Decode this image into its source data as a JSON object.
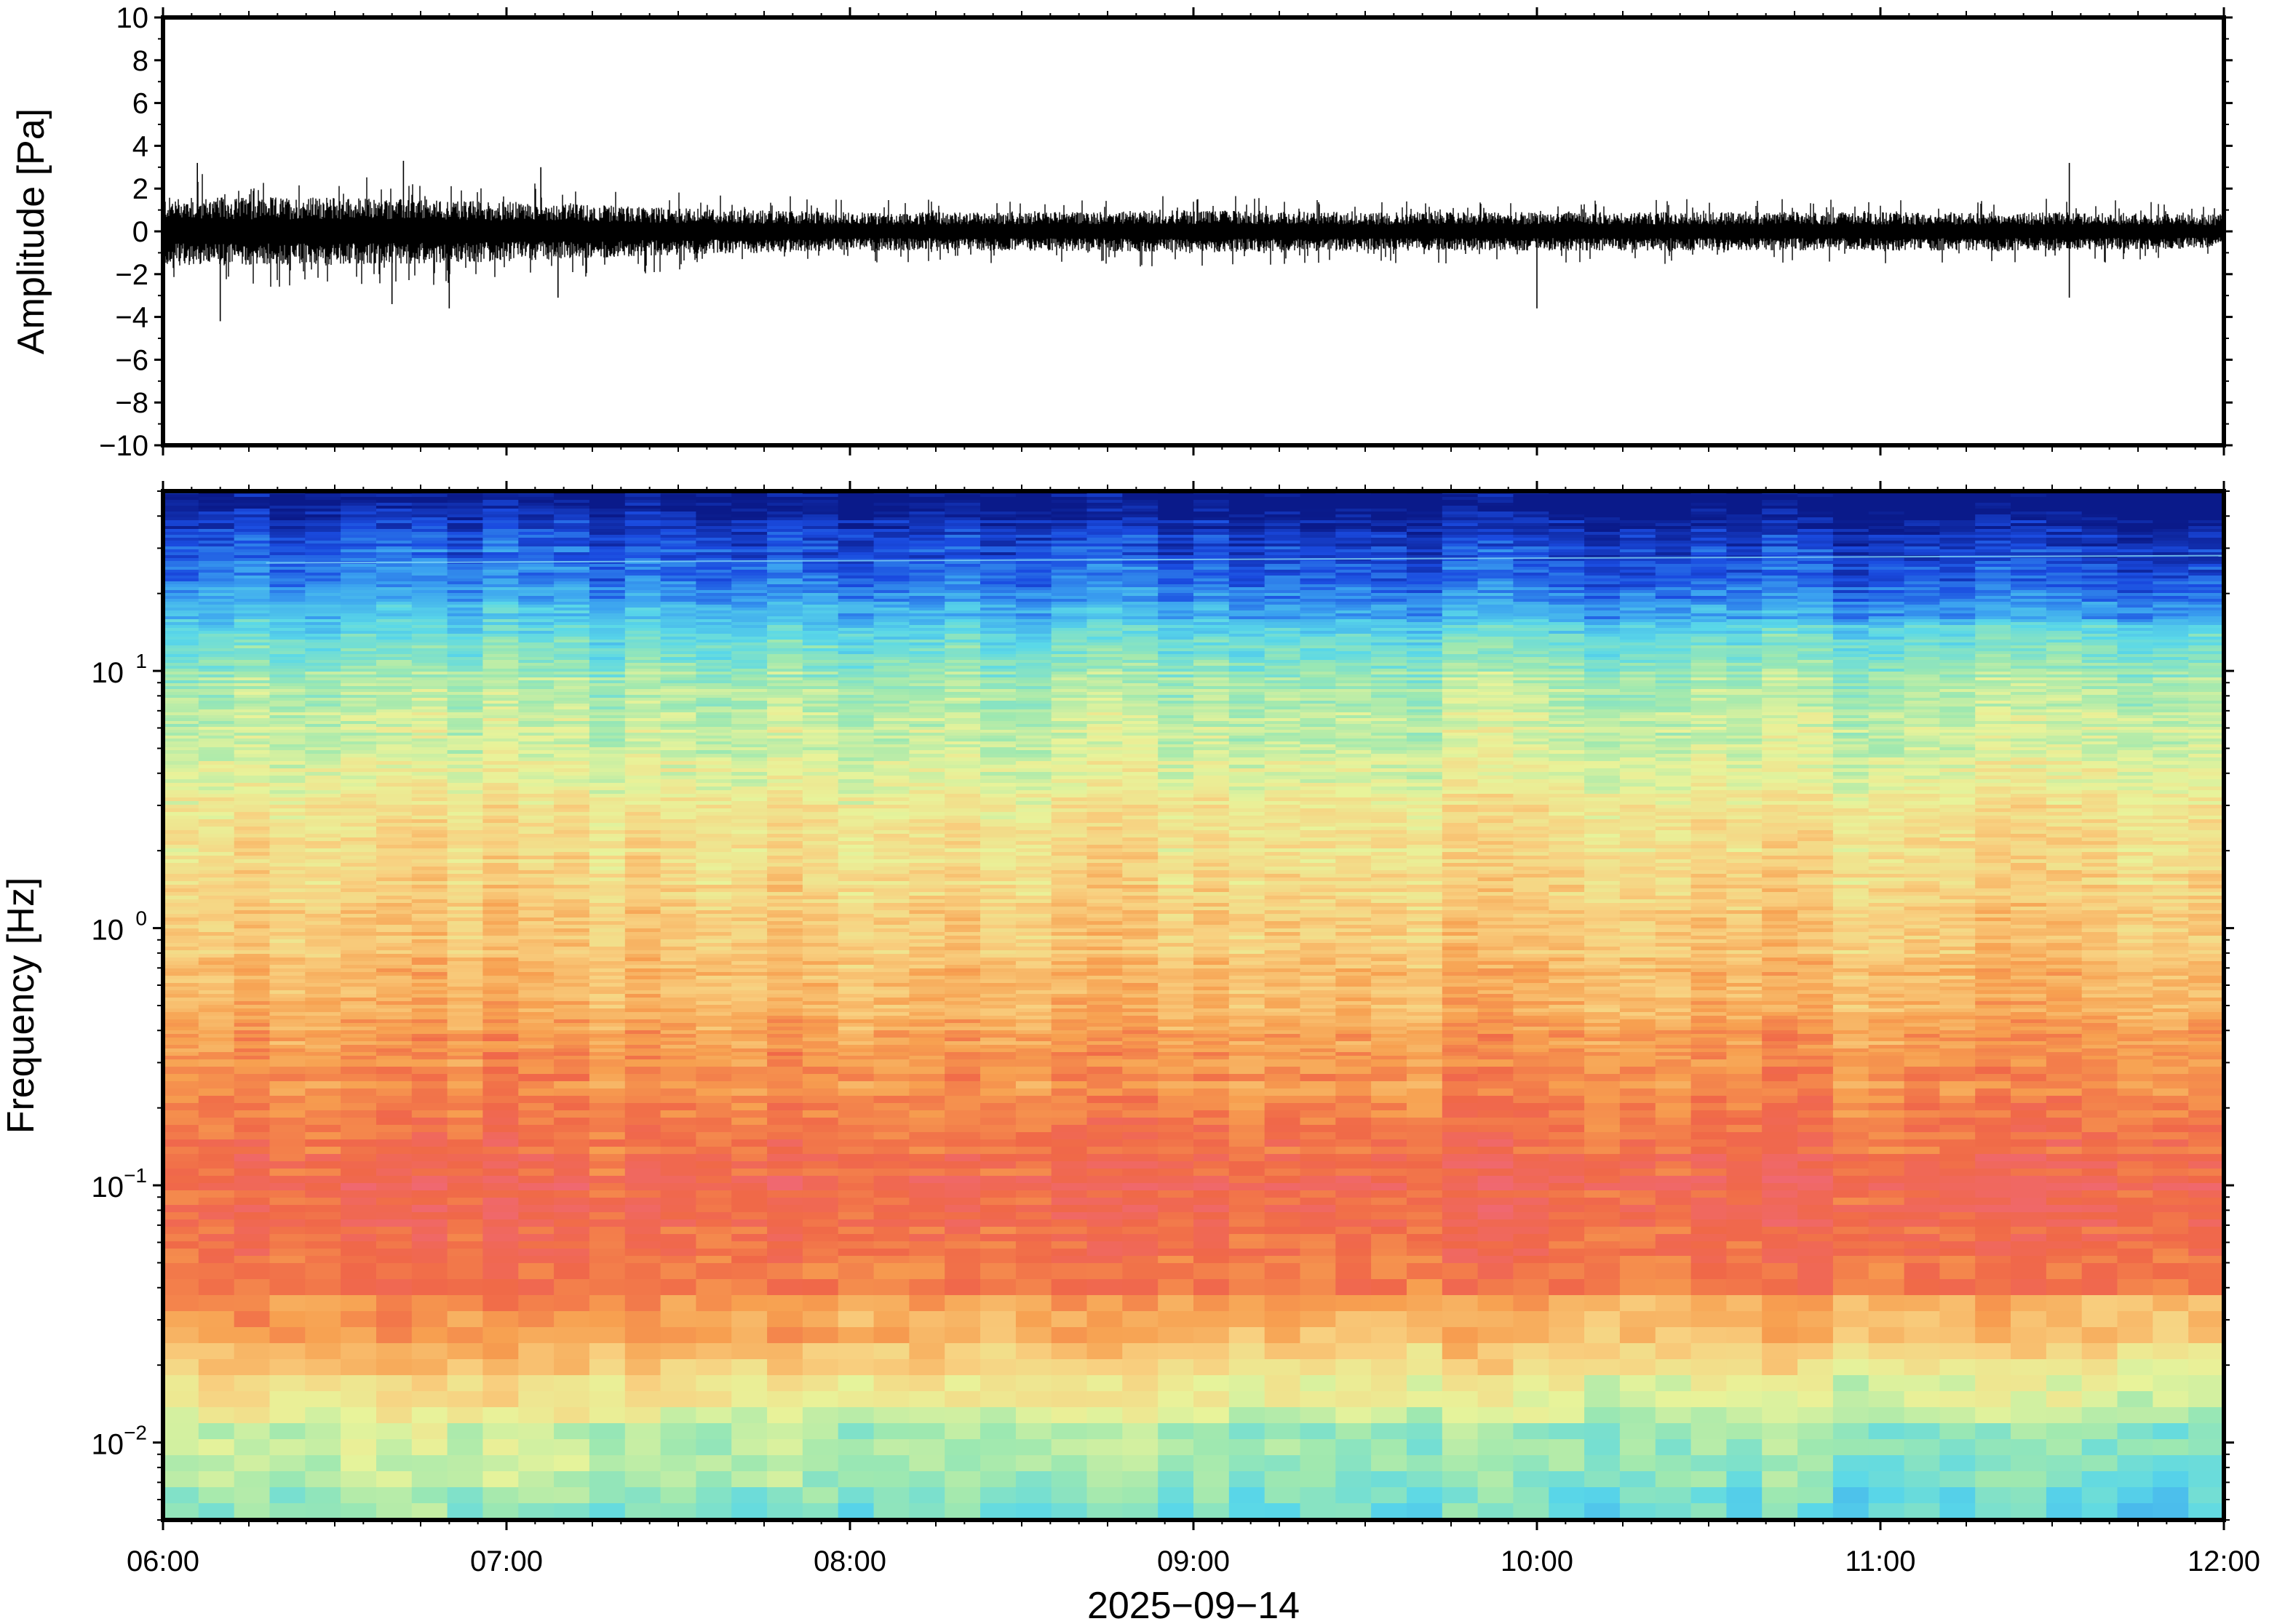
{
  "chart_data": [
    {
      "type": "line",
      "panel": "waveform",
      "ylabel": "Amplitude [Pa]",
      "xlabel": "",
      "ylim": [
        -10,
        10
      ],
      "y_ticks": [
        10,
        8,
        6,
        4,
        2,
        0,
        -2,
        -4,
        -6,
        -8,
        -10
      ],
      "y_tick_labels": [
        "10",
        "8",
        "6",
        "4",
        "2",
        "0",
        "−2",
        "−4",
        "−6",
        "−8",
        "−10"
      ],
      "x_range": [
        "06:00",
        "12:00"
      ],
      "color": "#000000",
      "series": [
        {
          "time_hours": [
            6.0,
            6.5,
            7.0,
            7.5,
            8.0,
            8.5,
            9.0,
            9.5,
            10.0,
            10.5,
            11.0,
            11.5,
            12.0
          ],
          "envelope_pa": [
            1.6,
            1.6,
            1.4,
            1.1,
            0.9,
            0.9,
            1.0,
            0.9,
            0.9,
            0.9,
            0.9,
            0.9,
            0.8
          ],
          "peaks": [
            {
              "time": "06:10",
              "value": -4.2
            },
            {
              "time": "06:06",
              "value": 3.2
            },
            {
              "time": "06:42",
              "value": 3.3
            },
            {
              "time": "06:40",
              "value": -3.4
            },
            {
              "time": "06:50",
              "value": -3.6
            },
            {
              "time": "07:06",
              "value": 3.0
            },
            {
              "time": "07:09",
              "value": -3.1
            },
            {
              "time": "10:00",
              "value": -3.6
            },
            {
              "time": "11:33",
              "value": 3.2
            },
            {
              "time": "11:33",
              "value": -3.1
            }
          ]
        }
      ]
    },
    {
      "type": "heatmap",
      "panel": "spectrogram",
      "ylabel": "Frequency [Hz]",
      "xlabel": "2025−09−14",
      "y_scale": "log",
      "ylim": [
        0.005,
        50
      ],
      "y_ticks": [
        0.01,
        0.1,
        1,
        10
      ],
      "y_tick_labels": [
        {
          "base": "10",
          "exp": "−2"
        },
        {
          "base": "10",
          "exp": "−1"
        },
        {
          "base": "10",
          "exp": "0"
        },
        {
          "base": "10",
          "exp": "1"
        }
      ],
      "x_ticks": [
        "06:00",
        "07:00",
        "08:00",
        "09:00",
        "10:00",
        "11:00",
        "12:00"
      ],
      "colormap": "rainbow (blue = low power, red = high power)",
      "colormap_stops": [
        "#0a1a8a",
        "#1a4be0",
        "#3aa0f0",
        "#5ad8e8",
        "#9ee8b0",
        "#e8f39a",
        "#f8d080",
        "#f7a050",
        "#f06848",
        "#f06870"
      ],
      "spectral_band_levels": [
        {
          "freq_hz": 0.005,
          "level": 0.42
        },
        {
          "freq_hz": 0.01,
          "level": 0.5
        },
        {
          "freq_hz": 0.02,
          "level": 0.68
        },
        {
          "freq_hz": 0.035,
          "level": 0.85
        },
        {
          "freq_hz": 0.1,
          "level": 0.92
        },
        {
          "freq_hz": 0.3,
          "level": 0.8
        },
        {
          "freq_hz": 1,
          "level": 0.68
        },
        {
          "freq_hz": 3,
          "level": 0.6
        },
        {
          "freq_hz": 10,
          "level": 0.45
        },
        {
          "freq_hz": 20,
          "level": 0.25
        },
        {
          "freq_hz": 50,
          "level": 0.02
        }
      ],
      "narrowband_line_hz": 27
    }
  ]
}
